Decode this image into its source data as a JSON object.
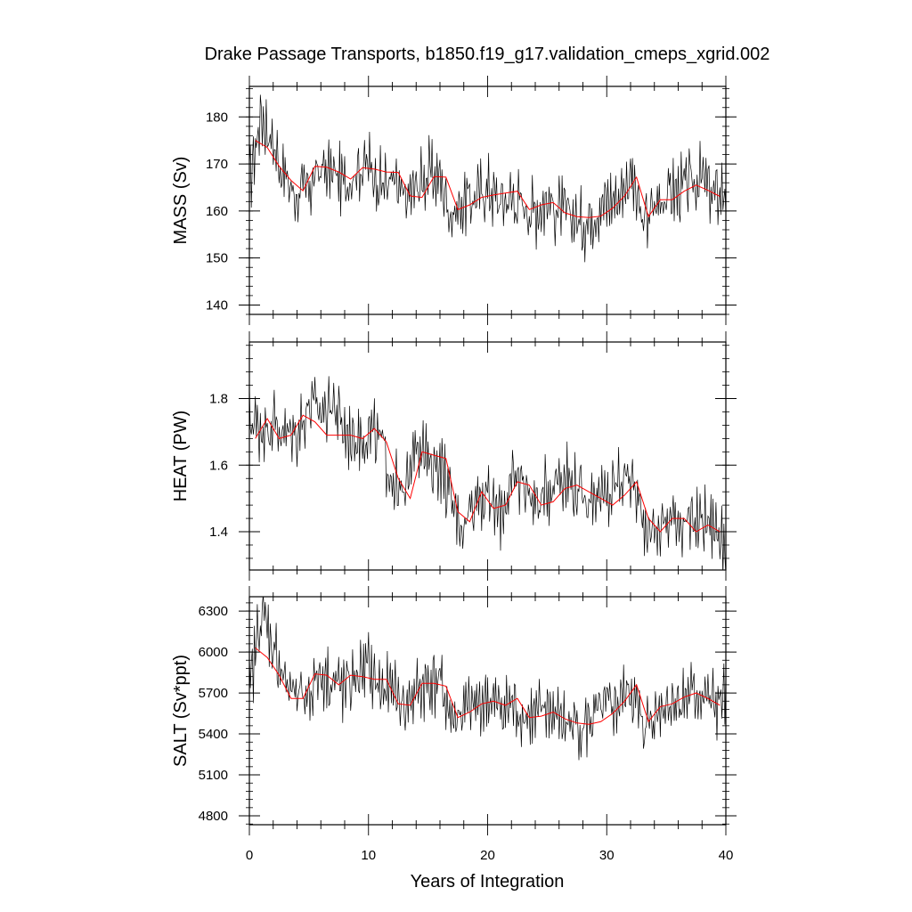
{
  "chart_data": {
    "type": "line",
    "title": "Drake Passage Transports, b1850.f19_g17.validation_cmeps_xgrid.002",
    "xlabel": "Years of Integration",
    "xlim": [
      0,
      40
    ],
    "xticks": [
      0,
      10,
      20,
      30,
      40
    ],
    "x_tick_labels": [
      "0",
      "10",
      "20",
      "30",
      "40"
    ],
    "panels": [
      {
        "ylabel": "MASS (Sv)",
        "ylim": [
          138,
          186.5
        ],
        "yticks": [
          140,
          150,
          160,
          170,
          180
        ],
        "y_tick_labels": [
          "140",
          "150",
          "160",
          "170",
          "180"
        ],
        "series": [
          {
            "color": "#000000",
            "style": "monthly",
            "x": [
              0,
              1,
              2,
              3,
              4,
              5,
              6,
              7,
              8,
              9,
              10,
              11,
              12,
              13,
              14,
              15,
              16,
              17,
              18,
              19,
              20,
              21,
              22,
              23,
              24,
              25,
              26,
              27,
              28,
              29,
              30,
              31,
              32,
              33,
              34,
              35,
              36,
              37,
              38,
              39,
              40
            ],
            "values": [
              166,
              181,
              174,
              167,
              163,
              165,
              169,
              168,
              166,
              169,
              170,
              166,
              166,
              162,
              165,
              168,
              167,
              159,
              162,
              163,
              165,
              162,
              163,
              161,
              160,
              162,
              160,
              159,
              157,
              160,
              162,
              163,
              168,
              157,
              161,
              164,
              164,
              166,
              167,
              163,
              165
            ]
          },
          {
            "color": "#ff0000",
            "style": "annual",
            "x": [
              0.5,
              1.5,
              2.5,
              3.5,
              4.5,
              5.5,
              6.5,
              7.5,
              8.5,
              9.5,
              10.5,
              11.5,
              12.5,
              13.5,
              14.5,
              15.5,
              16.5,
              17.5,
              18.5,
              19.5,
              20.5,
              21.5,
              22.5,
              23.5,
              24.5,
              25.5,
              26.5,
              27.5,
              28.5,
              29.5,
              30.5,
              31.5,
              32.5,
              33.5,
              34.5,
              35.5,
              36.5,
              37.5,
              38.5,
              39.5
            ],
            "values": [
              175,
              173.5,
              169.5,
              166.5,
              164.3,
              169.5,
              169.3,
              168.3,
              166.8,
              169.2,
              168.9,
              168.3,
              168.2,
              163.2,
              162.9,
              167.3,
              167.2,
              160.3,
              161.3,
              162.9,
              163.4,
              163.8,
              164.2,
              160.3,
              161.3,
              161.8,
              159.6,
              158.8,
              158.6,
              158.9,
              160.6,
              163.2,
              167.2,
              158.8,
              162.4,
              162.4,
              164.2,
              165.5,
              164.4,
              163.1
            ]
          }
        ]
      },
      {
        "ylabel": "HEAT (PW)",
        "ylim": [
          1.285,
          1.97
        ],
        "yticks": [
          1.4,
          1.6,
          1.8
        ],
        "y_tick_labels": [
          "1.4",
          "1.6",
          "1.8"
        ],
        "series": [
          {
            "color": "#000000",
            "style": "monthly",
            "x": [
              0,
              1,
              2,
              3,
              4,
              5,
              6,
              7,
              8,
              9,
              10,
              11,
              12,
              13,
              14,
              15,
              16,
              17,
              18,
              19,
              20,
              21,
              22,
              23,
              24,
              25,
              26,
              27,
              28,
              29,
              30,
              31,
              32,
              33,
              34,
              35,
              36,
              37,
              38,
              39,
              40
            ],
            "values": [
              1.74,
              1.71,
              1.73,
              1.69,
              1.7,
              1.78,
              1.76,
              1.79,
              1.7,
              1.68,
              1.7,
              1.67,
              1.56,
              1.49,
              1.7,
              1.6,
              1.61,
              1.48,
              1.42,
              1.52,
              1.5,
              1.45,
              1.54,
              1.56,
              1.48,
              1.52,
              1.58,
              1.55,
              1.5,
              1.52,
              1.49,
              1.56,
              1.57,
              1.44,
              1.4,
              1.43,
              1.45,
              1.41,
              1.44,
              1.42,
              1.36
            ]
          },
          {
            "color": "#ff0000",
            "style": "annual",
            "x": [
              0.5,
              1.5,
              2.5,
              3.5,
              4.5,
              5.5,
              6.5,
              7.5,
              8.5,
              9.5,
              10.5,
              11.5,
              12.5,
              13.5,
              14.5,
              15.5,
              16.5,
              17.5,
              18.5,
              19.5,
              20.5,
              21.5,
              22.5,
              23.5,
              24.5,
              25.5,
              26.5,
              27.5,
              28.5,
              29.5,
              30.5,
              31.5,
              32.5,
              33.5,
              34.5,
              35.5,
              36.5,
              37.5,
              38.5,
              39.5
            ],
            "values": [
              1.68,
              1.74,
              1.68,
              1.69,
              1.75,
              1.73,
              1.69,
              1.69,
              1.69,
              1.68,
              1.71,
              1.67,
              1.56,
              1.5,
              1.64,
              1.63,
              1.62,
              1.46,
              1.43,
              1.52,
              1.47,
              1.48,
              1.55,
              1.54,
              1.48,
              1.49,
              1.53,
              1.54,
              1.52,
              1.5,
              1.48,
              1.51,
              1.55,
              1.44,
              1.4,
              1.44,
              1.44,
              1.4,
              1.42,
              1.4
            ]
          }
        ]
      },
      {
        "ylabel": "SALT (Sv*ppt)",
        "ylim": [
          4735,
          6405
        ],
        "yticks": [
          4800,
          5100,
          5400,
          5700,
          6000,
          6300
        ],
        "y_tick_labels": [
          "4800",
          "5100",
          "5400",
          "5700",
          "6000",
          "6300"
        ],
        "series": [
          {
            "color": "#000000",
            "style": "monthly",
            "x": [
              0,
              1,
              2,
              3,
              4,
              5,
              6,
              7,
              8,
              9,
              10,
              11,
              12,
              13,
              14,
              15,
              16,
              17,
              18,
              19,
              20,
              21,
              22,
              23,
              24,
              25,
              26,
              27,
              28,
              29,
              30,
              31,
              32,
              33,
              34,
              35,
              36,
              37,
              38,
              39,
              40
            ],
            "values": [
              5700,
              6300,
              6050,
              5780,
              5640,
              5700,
              5850,
              5780,
              5720,
              5830,
              5880,
              5720,
              5720,
              5600,
              5700,
              5780,
              5780,
              5500,
              5560,
              5600,
              5660,
              5580,
              5620,
              5540,
              5500,
              5600,
              5500,
              5480,
              5450,
              5520,
              5580,
              5620,
              5740,
              5440,
              5560,
              5640,
              5640,
              5680,
              5700,
              5600,
              5670
            ]
          },
          {
            "color": "#ff0000",
            "style": "annual",
            "x": [
              0.5,
              1.5,
              2.5,
              3.5,
              4.5,
              5.5,
              6.5,
              7.5,
              8.5,
              9.5,
              10.5,
              11.5,
              12.5,
              13.5,
              14.5,
              15.5,
              16.5,
              17.5,
              18.5,
              19.5,
              20.5,
              21.5,
              22.5,
              23.5,
              24.5,
              25.5,
              26.5,
              27.5,
              28.5,
              29.5,
              30.5,
              31.5,
              32.5,
              33.5,
              34.5,
              35.5,
              36.5,
              37.5,
              38.5,
              39.5
            ],
            "values": [
              6030,
              5960,
              5830,
              5660,
              5660,
              5840,
              5830,
              5760,
              5830,
              5820,
              5800,
              5800,
              5620,
              5610,
              5770,
              5770,
              5750,
              5520,
              5560,
              5620,
              5640,
              5610,
              5660,
              5520,
              5530,
              5560,
              5510,
              5480,
              5470,
              5490,
              5550,
              5640,
              5760,
              5490,
              5600,
              5620,
              5670,
              5700,
              5660,
              5610
            ]
          }
        ]
      }
    ]
  }
}
